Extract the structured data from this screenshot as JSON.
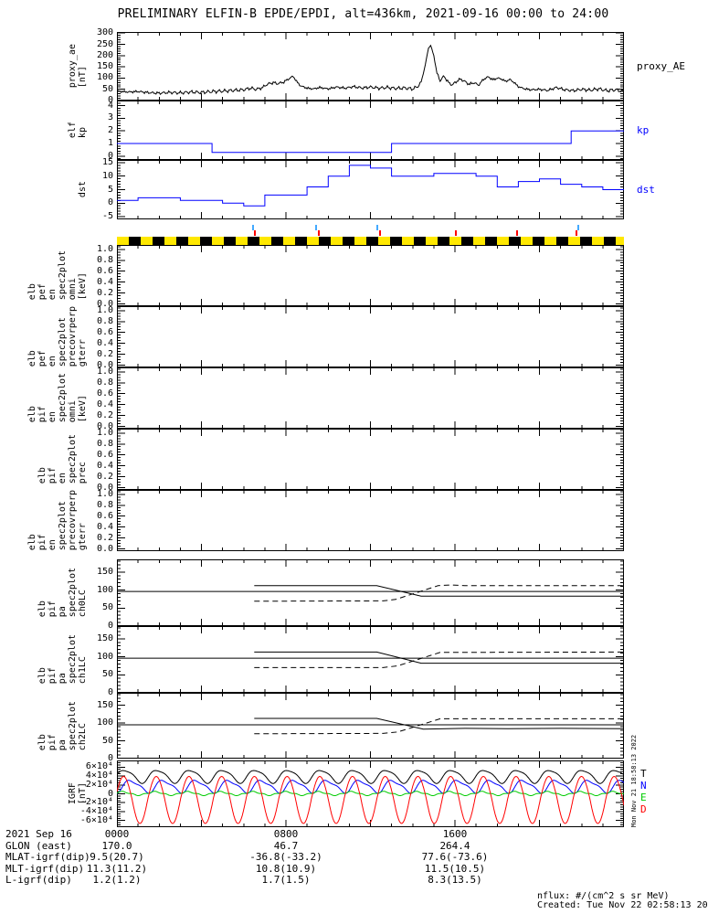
{
  "title": "PRELIMINARY ELFIN-B EPDE/EPDI, alt=436km, 2021-09-16 00:00 to 24:00",
  "xaxis": {
    "range_hours": [
      0,
      24
    ],
    "major_tick_every_hours": 4,
    "minor_tick_every_hours": 1,
    "label_hours": [
      0,
      8,
      16
    ],
    "labels": [
      "0000",
      "0800",
      "1600"
    ]
  },
  "science_bar": {
    "description": "alternating yellow/black availability bar above spectrogram panels",
    "yellow": "#ffe800",
    "black": "#000000",
    "blue_tick_color": "#44aaff",
    "red_tick_color": "#ff0000",
    "blue_tick_hours": [
      6.4,
      9.4,
      12.3,
      21.8
    ],
    "red_tick_hours": [
      6.5,
      9.5,
      12.4,
      16.0,
      18.9,
      21.7
    ]
  },
  "chart_data": [
    {
      "id": "proxy_ae",
      "type": "line",
      "ylabel_lines": [
        "proxy_ae",
        "[nT]"
      ],
      "right_label": "proxy_AE",
      "right_label_color": "#000000",
      "yrange": [
        0,
        305
      ],
      "yminor": 10,
      "yticks": [
        0,
        50,
        100,
        150,
        200,
        250,
        300
      ],
      "ytick_labels": [
        "0",
        "50",
        "100",
        "150",
        "200",
        "250",
        "300"
      ],
      "series": [
        {
          "name": "proxy_AE",
          "color": "#000000",
          "style": "keypoints",
          "jitter": true,
          "points": [
            [
              0,
              42
            ],
            [
              0.5,
              38
            ],
            [
              1,
              40
            ],
            [
              1.5,
              35
            ],
            [
              2,
              33
            ],
            [
              2.5,
              36
            ],
            [
              3,
              34
            ],
            [
              3.5,
              38
            ],
            [
              4,
              36
            ],
            [
              4.5,
              40
            ],
            [
              5,
              42
            ],
            [
              5.5,
              45
            ],
            [
              6,
              48
            ],
            [
              6.3,
              55
            ],
            [
              6.6,
              50
            ],
            [
              6.9,
              58
            ],
            [
              7.1,
              72
            ],
            [
              7.4,
              80
            ],
            [
              7.6,
              75
            ],
            [
              7.9,
              82
            ],
            [
              8.1,
              95
            ],
            [
              8.35,
              108
            ],
            [
              8.5,
              85
            ],
            [
              8.7,
              65
            ],
            [
              9,
              55
            ],
            [
              9.3,
              52
            ],
            [
              9.6,
              58
            ],
            [
              10,
              52
            ],
            [
              10.4,
              60
            ],
            [
              10.8,
              55
            ],
            [
              11.2,
              62
            ],
            [
              11.6,
              56
            ],
            [
              12,
              60
            ],
            [
              12.4,
              55
            ],
            [
              12.8,
              58
            ],
            [
              13.2,
              54
            ],
            [
              13.6,
              56
            ],
            [
              14,
              52
            ],
            [
              14.2,
              60
            ],
            [
              14.4,
              80
            ],
            [
              14.6,
              160
            ],
            [
              14.75,
              235
            ],
            [
              14.85,
              245
            ],
            [
              15,
              200
            ],
            [
              15.15,
              120
            ],
            [
              15.3,
              90
            ],
            [
              15.5,
              108
            ],
            [
              15.7,
              78
            ],
            [
              15.9,
              70
            ],
            [
              16.1,
              88
            ],
            [
              16.3,
              95
            ],
            [
              16.5,
              82
            ],
            [
              16.7,
              72
            ],
            [
              16.9,
              80
            ],
            [
              17.1,
              68
            ],
            [
              17.4,
              98
            ],
            [
              17.6,
              105
            ],
            [
              17.8,
              92
            ],
            [
              18,
              100
            ],
            [
              18.2,
              96
            ],
            [
              18.4,
              85
            ],
            [
              18.6,
              94
            ],
            [
              18.8,
              80
            ],
            [
              19,
              62
            ],
            [
              19.3,
              52
            ],
            [
              19.6,
              48
            ],
            [
              20,
              50
            ],
            [
              20.4,
              45
            ],
            [
              20.8,
              58
            ],
            [
              21.2,
              48
            ],
            [
              21.6,
              44
            ],
            [
              22,
              50
            ],
            [
              22.4,
              46
            ],
            [
              22.8,
              52
            ],
            [
              23.2,
              44
            ],
            [
              23.6,
              48
            ],
            [
              24,
              40
            ]
          ]
        }
      ]
    },
    {
      "id": "kp",
      "type": "steps",
      "ylabel_lines": [
        "elf",
        "kp"
      ],
      "right_label": "kp",
      "right_label_color": "#0000ff",
      "yrange": [
        -0.3,
        4.4
      ],
      "yminor": 0.2,
      "yticks": [
        0,
        1,
        2,
        3,
        4
      ],
      "ytick_labels": [
        "0",
        "1",
        "2",
        "3",
        "4"
      ],
      "series": [
        {
          "name": "kp",
          "color": "#0000ff",
          "style": "steps",
          "end_hour": 24,
          "segments": [
            [
              0,
              1
            ],
            [
              4.5,
              0.3
            ],
            [
              13,
              1
            ],
            [
              21.5,
              2
            ]
          ]
        }
      ]
    },
    {
      "id": "dst",
      "type": "steps",
      "ylabel_lines": [
        "dst"
      ],
      "right_label": "dst",
      "right_label_color": "#0000ff",
      "yrange": [
        -6,
        16
      ],
      "yminor": 1,
      "yticks": [
        -5,
        0,
        5,
        10,
        15
      ],
      "ytick_labels": [
        "-5",
        "0",
        "5",
        "10",
        "15"
      ],
      "series": [
        {
          "name": "dst",
          "color": "#0000ff",
          "style": "hourly",
          "values": [
            1,
            2,
            2,
            1,
            1,
            0,
            -1,
            3,
            3,
            6,
            10,
            14,
            13,
            10,
            10,
            11,
            11,
            10,
            6,
            8,
            9,
            7,
            6,
            5
          ]
        }
      ]
    },
    {
      "id": "spec_pef_omni",
      "type": "spectrogram-empty",
      "ylabel_lines": [
        "elb",
        "pef",
        "en",
        "spec2plot",
        "omni",
        "[keV]"
      ],
      "yrange": [
        -0.04,
        1.08
      ],
      "yminor": 0.05,
      "yticks": [
        0.0,
        0.2,
        0.4,
        0.6,
        0.8,
        1.0
      ],
      "ytick_labels": [
        "0.0",
        "0.2",
        "0.4",
        "0.6",
        "0.8",
        "1.0"
      ],
      "series": []
    },
    {
      "id": "spec_pef_precovrperp",
      "type": "spectrogram-empty",
      "ylabel_lines": [
        "elb",
        "pef",
        "en",
        "spec2plot",
        "precovrperp",
        "gterr"
      ],
      "yrange": [
        -0.04,
        1.08
      ],
      "yminor": 0.05,
      "yticks": [
        0.0,
        0.2,
        0.4,
        0.6,
        0.8,
        1.0
      ],
      "ytick_labels": [
        "0.0",
        "0.2",
        "0.4",
        "0.6",
        "0.8",
        "1.0"
      ],
      "series": []
    },
    {
      "id": "spec_pif_omni",
      "type": "spectrogram-empty",
      "ylabel_lines": [
        "elb",
        "pif",
        "en",
        "spec2plot",
        "omni",
        "[keV]"
      ],
      "yrange": [
        -0.04,
        1.08
      ],
      "yminor": 0.05,
      "yticks": [
        0.0,
        0.2,
        0.4,
        0.6,
        0.8,
        1.0
      ],
      "ytick_labels": [
        "0.0",
        "0.2",
        "0.4",
        "0.6",
        "0.8",
        "1.0"
      ],
      "series": []
    },
    {
      "id": "spec_pif_prec",
      "type": "spectrogram-empty",
      "ylabel_lines": [
        "elb",
        "pif",
        "en",
        "spec2plot",
        "prec"
      ],
      "yrange": [
        -0.04,
        1.08
      ],
      "yminor": 0.05,
      "yticks": [
        0.0,
        0.2,
        0.4,
        0.6,
        0.8,
        1.0
      ],
      "ytick_labels": [
        "0.0",
        "0.2",
        "0.4",
        "0.6",
        "0.8",
        "1.0"
      ],
      "series": []
    },
    {
      "id": "spec_pif_precovrperp",
      "type": "spectrogram-empty",
      "ylabel_lines": [
        "elb",
        "pif",
        "en",
        "spec2plot",
        "precovrperp",
        "gterr"
      ],
      "yrange": [
        -0.04,
        1.08
      ],
      "yminor": 0.05,
      "yticks": [
        0.0,
        0.2,
        0.4,
        0.6,
        0.8,
        1.0
      ],
      "ytick_labels": [
        "0.0",
        "0.2",
        "0.4",
        "0.6",
        "0.8",
        "1.0"
      ],
      "series": []
    },
    {
      "id": "lc0",
      "type": "line",
      "ylabel_lines": [
        "elb",
        "pif",
        "pa",
        "spec2plot",
        "ch0LC"
      ],
      "yrange": [
        0,
        185
      ],
      "yminor": 10,
      "yticks": [
        0,
        50,
        100,
        150
      ],
      "ytick_labels": [
        "0",
        "50",
        "100",
        "150"
      ],
      "series": [
        {
          "name": "ref90",
          "color": "#000000",
          "style": "poly",
          "points": [
            [
              0,
              96
            ],
            [
              24,
              96
            ]
          ]
        },
        {
          "name": "losscone",
          "color": "#000000",
          "style": "poly",
          "points": [
            [
              6.5,
              112
            ],
            [
              12.3,
              112
            ],
            [
              14.4,
              83
            ],
            [
              24,
              83
            ]
          ]
        },
        {
          "name": "antilosscone",
          "color": "#000000",
          "style": "poly",
          "dashed": true,
          "points": [
            [
              6.5,
              69
            ],
            [
              12.6,
              70
            ],
            [
              13.2,
              74
            ],
            [
              15.2,
              112
            ],
            [
              15.8,
              114
            ],
            [
              16.5,
              112
            ],
            [
              24,
              112
            ]
          ]
        }
      ]
    },
    {
      "id": "lc1",
      "type": "line",
      "ylabel_lines": [
        "elb",
        "pif",
        "pa",
        "spec2plot",
        "ch1LC"
      ],
      "yrange": [
        0,
        185
      ],
      "yminor": 10,
      "yticks": [
        0,
        50,
        100,
        150
      ],
      "ytick_labels": [
        "0",
        "50",
        "100",
        "150"
      ],
      "series": [
        {
          "name": "ref90",
          "color": "#000000",
          "style": "poly",
          "points": [
            [
              0,
              96
            ],
            [
              24,
              96
            ]
          ]
        },
        {
          "name": "losscone",
          "color": "#000000",
          "style": "poly",
          "points": [
            [
              6.5,
              113
            ],
            [
              12.3,
              113
            ],
            [
              14.4,
              82
            ],
            [
              24,
              82
            ]
          ]
        },
        {
          "name": "antilosscone",
          "color": "#000000",
          "style": "poly",
          "dashed": true,
          "points": [
            [
              6.5,
              70
            ],
            [
              12.6,
              70
            ],
            [
              13.3,
              75
            ],
            [
              15.3,
              112
            ],
            [
              24,
              113
            ]
          ]
        }
      ]
    },
    {
      "id": "lc2",
      "type": "line",
      "ylabel_lines": [
        "elb",
        "pif",
        "pa",
        "spec2plot",
        "ch2LC"
      ],
      "yrange": [
        0,
        185
      ],
      "yminor": 10,
      "yticks": [
        0,
        50,
        100,
        150
      ],
      "ytick_labels": [
        "0",
        "50",
        "100",
        "150"
      ],
      "series": [
        {
          "name": "ref90",
          "color": "#000000",
          "style": "poly",
          "points": [
            [
              0,
              95
            ],
            [
              24,
              95
            ]
          ]
        },
        {
          "name": "losscone",
          "color": "#000000",
          "style": "poly",
          "points": [
            [
              6.5,
              113
            ],
            [
              12.3,
              113
            ],
            [
              14.5,
              83
            ],
            [
              16.5,
              85
            ],
            [
              18.5,
              84
            ],
            [
              21,
              85
            ],
            [
              24,
              84
            ]
          ]
        },
        {
          "name": "antilosscone",
          "color": "#000000",
          "style": "poly",
          "dashed": true,
          "points": [
            [
              6.5,
              70
            ],
            [
              12.6,
              71
            ],
            [
              13.3,
              75
            ],
            [
              15.3,
              112
            ],
            [
              24,
              112
            ]
          ]
        }
      ]
    },
    {
      "id": "igrf",
      "type": "line",
      "ylabel_lines": [
        "IGRF",
        "[nT]"
      ],
      "yrange": [
        -75000,
        75000
      ],
      "yminor": 5000,
      "yticks": [
        60000,
        40000,
        20000,
        0,
        -20000,
        -40000,
        -60000
      ],
      "ytick_labels": [
        "6×10⁴",
        "4×10⁴",
        "2×10⁴",
        "0",
        "-2×10⁴",
        "-4×10⁴",
        "-6×10⁴"
      ],
      "cycles_per_24h": 15.5,
      "legend": [
        {
          "label": "T",
          "color": "#000000"
        },
        {
          "label": "N",
          "color": "#0000ff"
        },
        {
          "label": "E",
          "color": "#00cc00"
        },
        {
          "label": "D",
          "color": "#ff0000"
        }
      ],
      "series": [
        {
          "name": "T",
          "color": "#000000",
          "style": "waveform",
          "shape": "sin",
          "base": 40000,
          "amp": 14000,
          "phase": 0.0,
          "harm": 3000,
          "hphase": 1.0,
          "neg_scale": 1.0
        },
        {
          "name": "N",
          "color": "#0000ff",
          "style": "waveform",
          "shape": "sin",
          "base": 17000,
          "amp": 13000,
          "phase": -1.2,
          "harm": 4000,
          "hphase": 0.5,
          "neg_scale": 1.0
        },
        {
          "name": "E",
          "color": "#00cc00",
          "style": "waveform",
          "shape": "cube",
          "base": 800,
          "amp": 5000,
          "phase": 0.6,
          "harm": 0,
          "hphase": 0,
          "neg_scale": 1.0
        },
        {
          "name": "D",
          "color": "#ff0000",
          "style": "waveform",
          "shape": "sin",
          "base": -9000,
          "amp": 48000,
          "phase": 0.3,
          "harm": 0,
          "hphase": 0,
          "neg_scale": 1.2
        }
      ]
    }
  ],
  "footer": {
    "rows": [
      {
        "label": "2021 Sep 16",
        "values": [
          "0000",
          "0800",
          "1600"
        ]
      },
      {
        "label": "GLON (east)",
        "values": [
          "170.0",
          "46.7",
          "264.4"
        ]
      },
      {
        "label": "MLAT-igrf(dip)",
        "values": [
          "9.5(20.7)",
          "-36.8(-33.2)",
          "77.6(-73.6)"
        ]
      },
      {
        "label": "MLT-igrf(dip)",
        "values": [
          "11.3(11.2)",
          "10.8(10.9)",
          "11.5(10.5)"
        ]
      },
      {
        "label": "L-igrf(dip)",
        "values": [
          "1.2(1.2)",
          "1.7(1.5)",
          "8.3(13.5)"
        ]
      }
    ],
    "note_flux": "nflux: #/(cm^2 s sr MeV)",
    "created": "Created: Tue Nov 22 02:58:13 2022",
    "side_timestamp": "Mon Nov 21 18:58:13 2022"
  }
}
